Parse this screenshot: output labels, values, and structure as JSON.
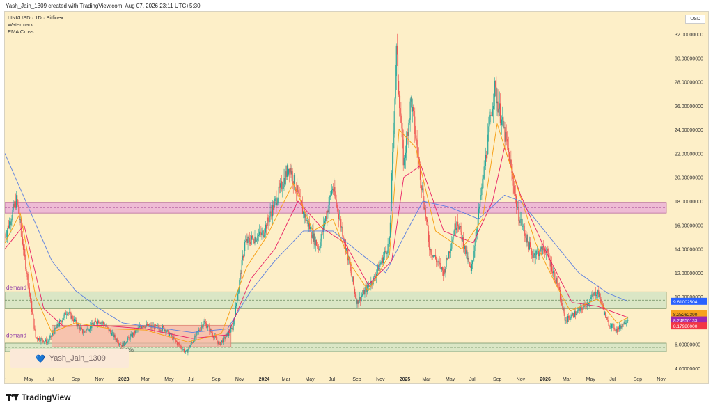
{
  "header": {
    "caption": "Yash_Jain_1309 created with TradingView.com, Aug 07, 2026 23:11 UTC+5:30"
  },
  "legend": {
    "symbol": "LINKUSD · 1D · Bitfinex",
    "line2": "Watermark",
    "line3": "EMA Cross"
  },
  "axis": {
    "currency": "USD",
    "price_labels": [
      "32.00000000",
      "30.00000000",
      "28.00000000",
      "26.00000000",
      "24.00000000",
      "22.00000000",
      "20.00000000",
      "18.00000000",
      "16.00000000",
      "14.00000000",
      "12.00000000",
      "10.00000000",
      "8.00000000",
      "6.00000000",
      "4.00000000"
    ],
    "time_labels": [
      "ar",
      "May",
      "Jul",
      "Sep",
      "Nov",
      "2023",
      "Mar",
      "May",
      "Jul",
      "Sep",
      "Nov",
      "2024",
      "Mar",
      "May",
      "Jul",
      "Sep",
      "Nov",
      "2025",
      "Mar",
      "May",
      "Jul",
      "Sep",
      "Nov",
      "2026",
      "Mar",
      "May",
      "Jul",
      "Sep",
      "Nov"
    ]
  },
  "annotations": {
    "demand_upper": "demand",
    "demand_lower": "demand",
    "pct_label": "-22.02%"
  },
  "badges": [
    {
      "label": "9.61002504",
      "color": "#2962ff"
    },
    {
      "label": "8.25262390",
      "color": "#f7a21b"
    },
    {
      "label": "8.24950133",
      "color": "#9c27b0"
    },
    {
      "label": "8.17980000",
      "color": "#f23645"
    }
  ],
  "watermark": {
    "text": "Yash_Jain_1309",
    "icon": "heart-icon"
  },
  "footer": {
    "brand": "TradingView"
  },
  "colors": {
    "background": "#fdefc8",
    "ema_fast": "#f7a21b",
    "ema_mid": "#e91e63",
    "ema_slow": "#5b7fe0",
    "candle_up": "#26a69a",
    "candle_down": "#ef5350",
    "zone_pink": "#e8a9d8",
    "zone_green": "#cde3c4",
    "zone_red": "#f4b1a3"
  },
  "chart_data": {
    "type": "candlestick",
    "title": "LINKUSD · 1D · Bitfinex",
    "ylabel": "USD",
    "ylim": [
      3,
      33
    ],
    "xlim": [
      "2022-03-01",
      "2026-11-15"
    ],
    "zones": [
      {
        "name": "",
        "y_low": 17.0,
        "y_high": 17.9,
        "x_start": "2022-03-01",
        "x_end": "2026-11-15"
      },
      {
        "name": "demand",
        "y_low": 9.0,
        "y_high": 10.4,
        "x_start": "2022-03-01",
        "x_end": "2026-11-15"
      },
      {
        "name": "demand",
        "y_low": 5.4,
        "y_high": 6.1,
        "x_start": "2022-03-01",
        "x_end": "2026-11-15"
      },
      {
        "name": "",
        "y_low": 5.8,
        "y_high": 7.6,
        "x_start": "2022-07-01",
        "x_end": "2023-10-10"
      }
    ],
    "price_path": [
      [
        "2022-03-01",
        15.0
      ],
      [
        "2022-04-01",
        18.2
      ],
      [
        "2022-05-01",
        11.0
      ],
      [
        "2022-05-20",
        6.6
      ],
      [
        "2022-06-20",
        6.2
      ],
      [
        "2022-08-10",
        8.8
      ],
      [
        "2022-09-20",
        7.0
      ],
      [
        "2022-10-30",
        8.0
      ],
      [
        "2022-11-10",
        7.8
      ],
      [
        "2022-12-30",
        5.9
      ],
      [
        "2023-02-20",
        7.6
      ],
      [
        "2023-04-20",
        7.3
      ],
      [
        "2023-06-15",
        5.3
      ],
      [
        "2023-08-01",
        7.9
      ],
      [
        "2023-09-10",
        6.0
      ],
      [
        "2023-10-15",
        7.4
      ],
      [
        "2023-11-15",
        14.5
      ],
      [
        "2024-01-01",
        15.3
      ],
      [
        "2024-03-10",
        21.0
      ],
      [
        "2024-04-15",
        17.0
      ],
      [
        "2024-05-25",
        14.0
      ],
      [
        "2024-06-30",
        19.2
      ],
      [
        "2024-08-05",
        14.0
      ],
      [
        "2024-09-01",
        9.5
      ],
      [
        "2024-10-15",
        11.5
      ],
      [
        "2024-11-25",
        14.5
      ],
      [
        "2024-12-13",
        30.5
      ],
      [
        "2025-01-01",
        21.0
      ],
      [
        "2025-01-20",
        26.5
      ],
      [
        "2025-03-10",
        14.0
      ],
      [
        "2025-04-15",
        12.0
      ],
      [
        "2025-05-20",
        16.5
      ],
      [
        "2025-06-25",
        12.0
      ],
      [
        "2025-07-25",
        19.5
      ],
      [
        "2025-08-25",
        27.5
      ],
      [
        "2025-10-01",
        22.0
      ],
      [
        "2025-10-25",
        17.0
      ],
      [
        "2025-12-01",
        13.5
      ],
      [
        "2026-01-05",
        14.0
      ],
      [
        "2026-02-05",
        11.0
      ],
      [
        "2026-02-25",
        8.0
      ],
      [
        "2026-04-10",
        9.0
      ],
      [
        "2026-05-20",
        10.5
      ],
      [
        "2026-06-15",
        7.8
      ],
      [
        "2026-07-10",
        7.2
      ],
      [
        "2026-08-07",
        8.18
      ]
    ],
    "ema_fast": [
      [
        "2022-03-01",
        14.5
      ],
      [
        "2022-04-10",
        17.0
      ],
      [
        "2022-05-20",
        10.0
      ],
      [
        "2022-07-01",
        7.0
      ],
      [
        "2022-09-01",
        7.8
      ],
      [
        "2022-12-01",
        7.3
      ],
      [
        "2023-03-01",
        7.2
      ],
      [
        "2023-06-20",
        6.2
      ],
      [
        "2023-09-15",
        6.9
      ],
      [
        "2023-11-20",
        12.5
      ],
      [
        "2024-01-10",
        15.0
      ],
      [
        "2024-03-20",
        19.5
      ],
      [
        "2024-05-10",
        15.5
      ],
      [
        "2024-07-01",
        16.5
      ],
      [
        "2024-08-20",
        12.5
      ],
      [
        "2024-10-01",
        10.5
      ],
      [
        "2024-11-25",
        13.5
      ],
      [
        "2024-12-20",
        24.0
      ],
      [
        "2025-02-01",
        22.5
      ],
      [
        "2025-03-25",
        15.5
      ],
      [
        "2025-06-01",
        14.0
      ],
      [
        "2025-07-25",
        16.5
      ],
      [
        "2025-09-01",
        24.5
      ],
      [
        "2025-10-15",
        20.0
      ],
      [
        "2025-12-10",
        14.5
      ],
      [
        "2026-02-01",
        11.0
      ],
      [
        "2026-03-10",
        8.8
      ],
      [
        "2026-05-20",
        9.8
      ],
      [
        "2026-07-10",
        7.8
      ],
      [
        "2026-08-07",
        8.25
      ]
    ],
    "ema_mid": [
      [
        "2022-03-01",
        14.0
      ],
      [
        "2022-04-20",
        16.0
      ],
      [
        "2022-06-10",
        9.0
      ],
      [
        "2022-08-01",
        7.5
      ],
      [
        "2022-11-01",
        7.6
      ],
      [
        "2023-03-01",
        7.3
      ],
      [
        "2023-07-01",
        6.5
      ],
      [
        "2023-10-01",
        6.8
      ],
      [
        "2023-12-01",
        11.5
      ],
      [
        "2024-02-01",
        14.0
      ],
      [
        "2024-04-01",
        18.0
      ],
      [
        "2024-06-01",
        15.8
      ],
      [
        "2024-08-01",
        14.5
      ],
      [
        "2024-10-01",
        11.0
      ],
      [
        "2024-12-01",
        13.0
      ],
      [
        "2025-01-01",
        20.0
      ],
      [
        "2025-02-15",
        21.0
      ],
      [
        "2025-04-15",
        15.5
      ],
      [
        "2025-07-01",
        14.5
      ],
      [
        "2025-08-20",
        18.0
      ],
      [
        "2025-09-20",
        22.5
      ],
      [
        "2025-11-01",
        18.5
      ],
      [
        "2026-01-10",
        13.5
      ],
      [
        "2026-03-15",
        9.5
      ],
      [
        "2026-05-20",
        9.2
      ],
      [
        "2026-08-07",
        8.25
      ]
    ],
    "ema_slow": [
      [
        "2022-03-01",
        22.0
      ],
      [
        "2022-05-01",
        17.5
      ],
      [
        "2022-07-01",
        13.0
      ],
      [
        "2022-09-01",
        10.5
      ],
      [
        "2022-11-01",
        9.0
      ],
      [
        "2023-01-01",
        7.8
      ],
      [
        "2023-04-01",
        7.4
      ],
      [
        "2023-07-01",
        7.0
      ],
      [
        "2023-10-01",
        7.3
      ],
      [
        "2023-12-01",
        10.5
      ],
      [
        "2024-02-01",
        13.0
      ],
      [
        "2024-04-15",
        15.5
      ],
      [
        "2024-07-01",
        15.5
      ],
      [
        "2024-09-15",
        13.5
      ],
      [
        "2024-11-15",
        12.0
      ],
      [
        "2025-01-01",
        15.0
      ],
      [
        "2025-02-20",
        18.0
      ],
      [
        "2025-05-01",
        17.5
      ],
      [
        "2025-07-15",
        16.5
      ],
      [
        "2025-09-20",
        18.5
      ],
      [
        "2025-11-01",
        18.0
      ],
      [
        "2026-01-15",
        15.0
      ],
      [
        "2026-04-01",
        12.0
      ],
      [
        "2026-06-15",
        10.3
      ],
      [
        "2026-08-07",
        9.6
      ]
    ]
  }
}
